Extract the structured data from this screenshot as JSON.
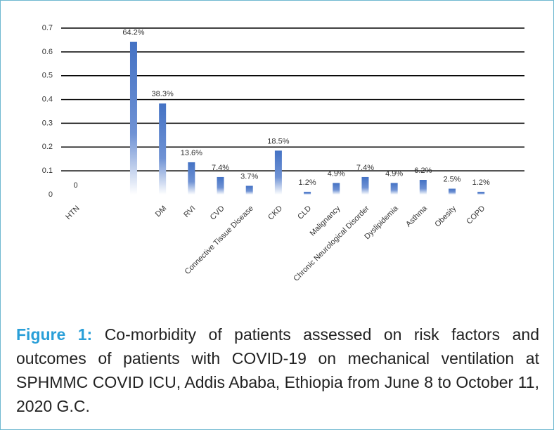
{
  "chart_data": {
    "type": "bar",
    "categories": [
      "HTN",
      null,
      null,
      "DM",
      "RVI",
      "CVD",
      "Connective Tissue Disease",
      "CKD",
      "CLD",
      "Malignancy",
      "Chronic Neurological Disorder",
      "Dyslipidemia",
      "Asthma",
      "Obesity",
      "COPD",
      null
    ],
    "values": [
      0,
      null,
      0.642,
      0.383,
      0.136,
      0.074,
      0.037,
      0.185,
      0.012,
      0.049,
      0.074,
      0.049,
      0.062,
      0.025,
      0.012,
      null
    ],
    "value_labels": [
      "0",
      null,
      "64.2%",
      "38.3%",
      "13.6%",
      "7.4%",
      "3.7%",
      "18.5%",
      "1.2%",
      "4.9%",
      "7.4%",
      "4.9%",
      "6.2%",
      "2.5%",
      "1.2%",
      null
    ],
    "color": "#4472c4",
    "ylim": [
      0,
      0.7
    ],
    "yticks": [
      0,
      0.1,
      0.2,
      0.3,
      0.4,
      0.5,
      0.6,
      0.7
    ],
    "grid": true
  },
  "caption": {
    "label": "Figure 1:",
    "text": "Co-morbidity of patients assessed on risk factors and outcomes of patients with COVID-19 on mechanical ventilation at SPHMMC COVID ICU, Addis Ababa, Ethiopia from June 8 to October 11, 2020 G.C."
  }
}
